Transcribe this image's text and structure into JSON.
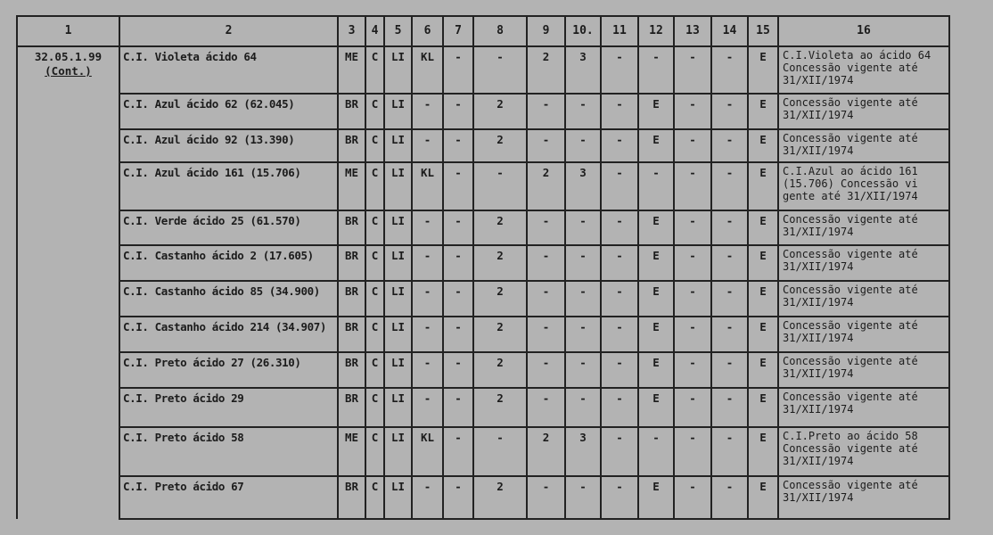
{
  "headers": [
    "1",
    "2",
    "3",
    "4",
    "5",
    "6",
    "7",
    "8",
    "9",
    "10.",
    "11",
    "12",
    "13",
    "14",
    "15",
    "16"
  ],
  "code": "32.05.1.99",
  "code_note": "(Cont.)",
  "rows": [
    {
      "name": "C.I. Violeta ácido 64",
      "cols": [
        "ME",
        "C",
        "LI",
        "KL",
        "-",
        "-",
        "2",
        "3",
        "-",
        "-",
        "-",
        "-",
        "E"
      ],
      "obs1": "C.I.Violeta ao ácido 64",
      "obs2": "Concessão vigente até",
      "obs3": "31/XII/1974"
    },
    {
      "name": "C.I. Azul ácido 62 (62.045)",
      "cols": [
        "BR",
        "C",
        "LI",
        "-",
        "-",
        "2",
        "-",
        "-",
        "-",
        "E",
        "-",
        "-",
        "E"
      ],
      "obs1": "Concessão vigente até",
      "obs2": "31/XII/1974",
      "obs3": ""
    },
    {
      "name": "C.I. Azul ácido 92 (13.390)",
      "cols": [
        "BR",
        "C",
        "LI",
        "-",
        "-",
        "2",
        "-",
        "-",
        "-",
        "E",
        "-",
        "-",
        "E"
      ],
      "obs1": "Concessão vigente até",
      "obs2": "31/XII/1974",
      "obs3": ""
    },
    {
      "name": "C.I. Azul ácido 161 (15.706)",
      "cols": [
        "ME",
        "C",
        "LI",
        "KL",
        "-",
        "-",
        "2",
        "3",
        "-",
        "-",
        "-",
        "-",
        "E"
      ],
      "obs1": "C.I.Azul ao ácido 161",
      "obs2": "(15.706)  Concessão vi",
      "obs3": "gente até 31/XII/1974"
    },
    {
      "name": "C.I. Verde ácido 25 (61.570)",
      "cols": [
        "BR",
        "C",
        "LI",
        "-",
        "-",
        "2",
        "-",
        "-",
        "-",
        "E",
        "-",
        "-",
        "E"
      ],
      "obs1": "Concessão vigente até",
      "obs2": "31/XII/1974",
      "obs3": ""
    },
    {
      "name": "C.I. Castanho ácido 2 (17.605)",
      "cols": [
        "BR",
        "C",
        "LI",
        "-",
        "-",
        "2",
        "-",
        "-",
        "-",
        "E",
        "-",
        "-",
        "E"
      ],
      "obs1": "Concessão vigente até",
      "obs2": "31/XII/1974",
      "obs3": ""
    },
    {
      "name": "C.I. Castanho ácido 85 (34.900)",
      "cols": [
        "BR",
        "C",
        "LI",
        "-",
        "-",
        "2",
        "-",
        "-",
        "-",
        "E",
        "-",
        "-",
        "E"
      ],
      "obs1": "Concessão vigente até",
      "obs2": "31/XII/1974",
      "obs3": ""
    },
    {
      "name": "C.I. Castanho ácido 214 (34.907)",
      "cols": [
        "BR",
        "C",
        "LI",
        "-",
        "-",
        "2",
        "-",
        "-",
        "-",
        "E",
        "-",
        "-",
        "E"
      ],
      "obs1": "Concessão vigente até",
      "obs2": "31/XII/1974",
      "obs3": ""
    },
    {
      "name": "C.I. Preto ácido 27 (26.310)",
      "cols": [
        "BR",
        "C",
        "LI",
        "-",
        "-",
        "2",
        "-",
        "-",
        "-",
        "E",
        "-",
        "-",
        "E"
      ],
      "obs1": "Concessão vigente até",
      "obs2": "31/XII/1974",
      "obs3": ""
    },
    {
      "name": "C.I. Preto ácido 29",
      "cols": [
        "BR",
        "C",
        "LI",
        "-",
        "-",
        "2",
        "-",
        "-",
        "-",
        "E",
        "-",
        "-",
        "E"
      ],
      "obs1": "Concessão vigente até",
      "obs2": "31/XII/1974",
      "obs3": ""
    },
    {
      "name": "C.I. Preto ácido 58",
      "cols": [
        "ME",
        "C",
        "LI",
        "KL",
        "-",
        "-",
        "2",
        "3",
        "-",
        "-",
        "-",
        "-",
        "E"
      ],
      "obs1": "C.I.Preto ao ácido 58",
      "obs2": "Concessão vigente até",
      "obs3": "31/XII/1974"
    },
    {
      "name": "C.I. Preto ácido 67",
      "cols": [
        "BR",
        "C",
        "LI",
        "-",
        "-",
        "2",
        "-",
        "-",
        "-",
        "E",
        "-",
        "-",
        "E"
      ],
      "obs1": "Concessão vigente até",
      "obs2": "31/XII/1974",
      "obs3": ""
    }
  ]
}
